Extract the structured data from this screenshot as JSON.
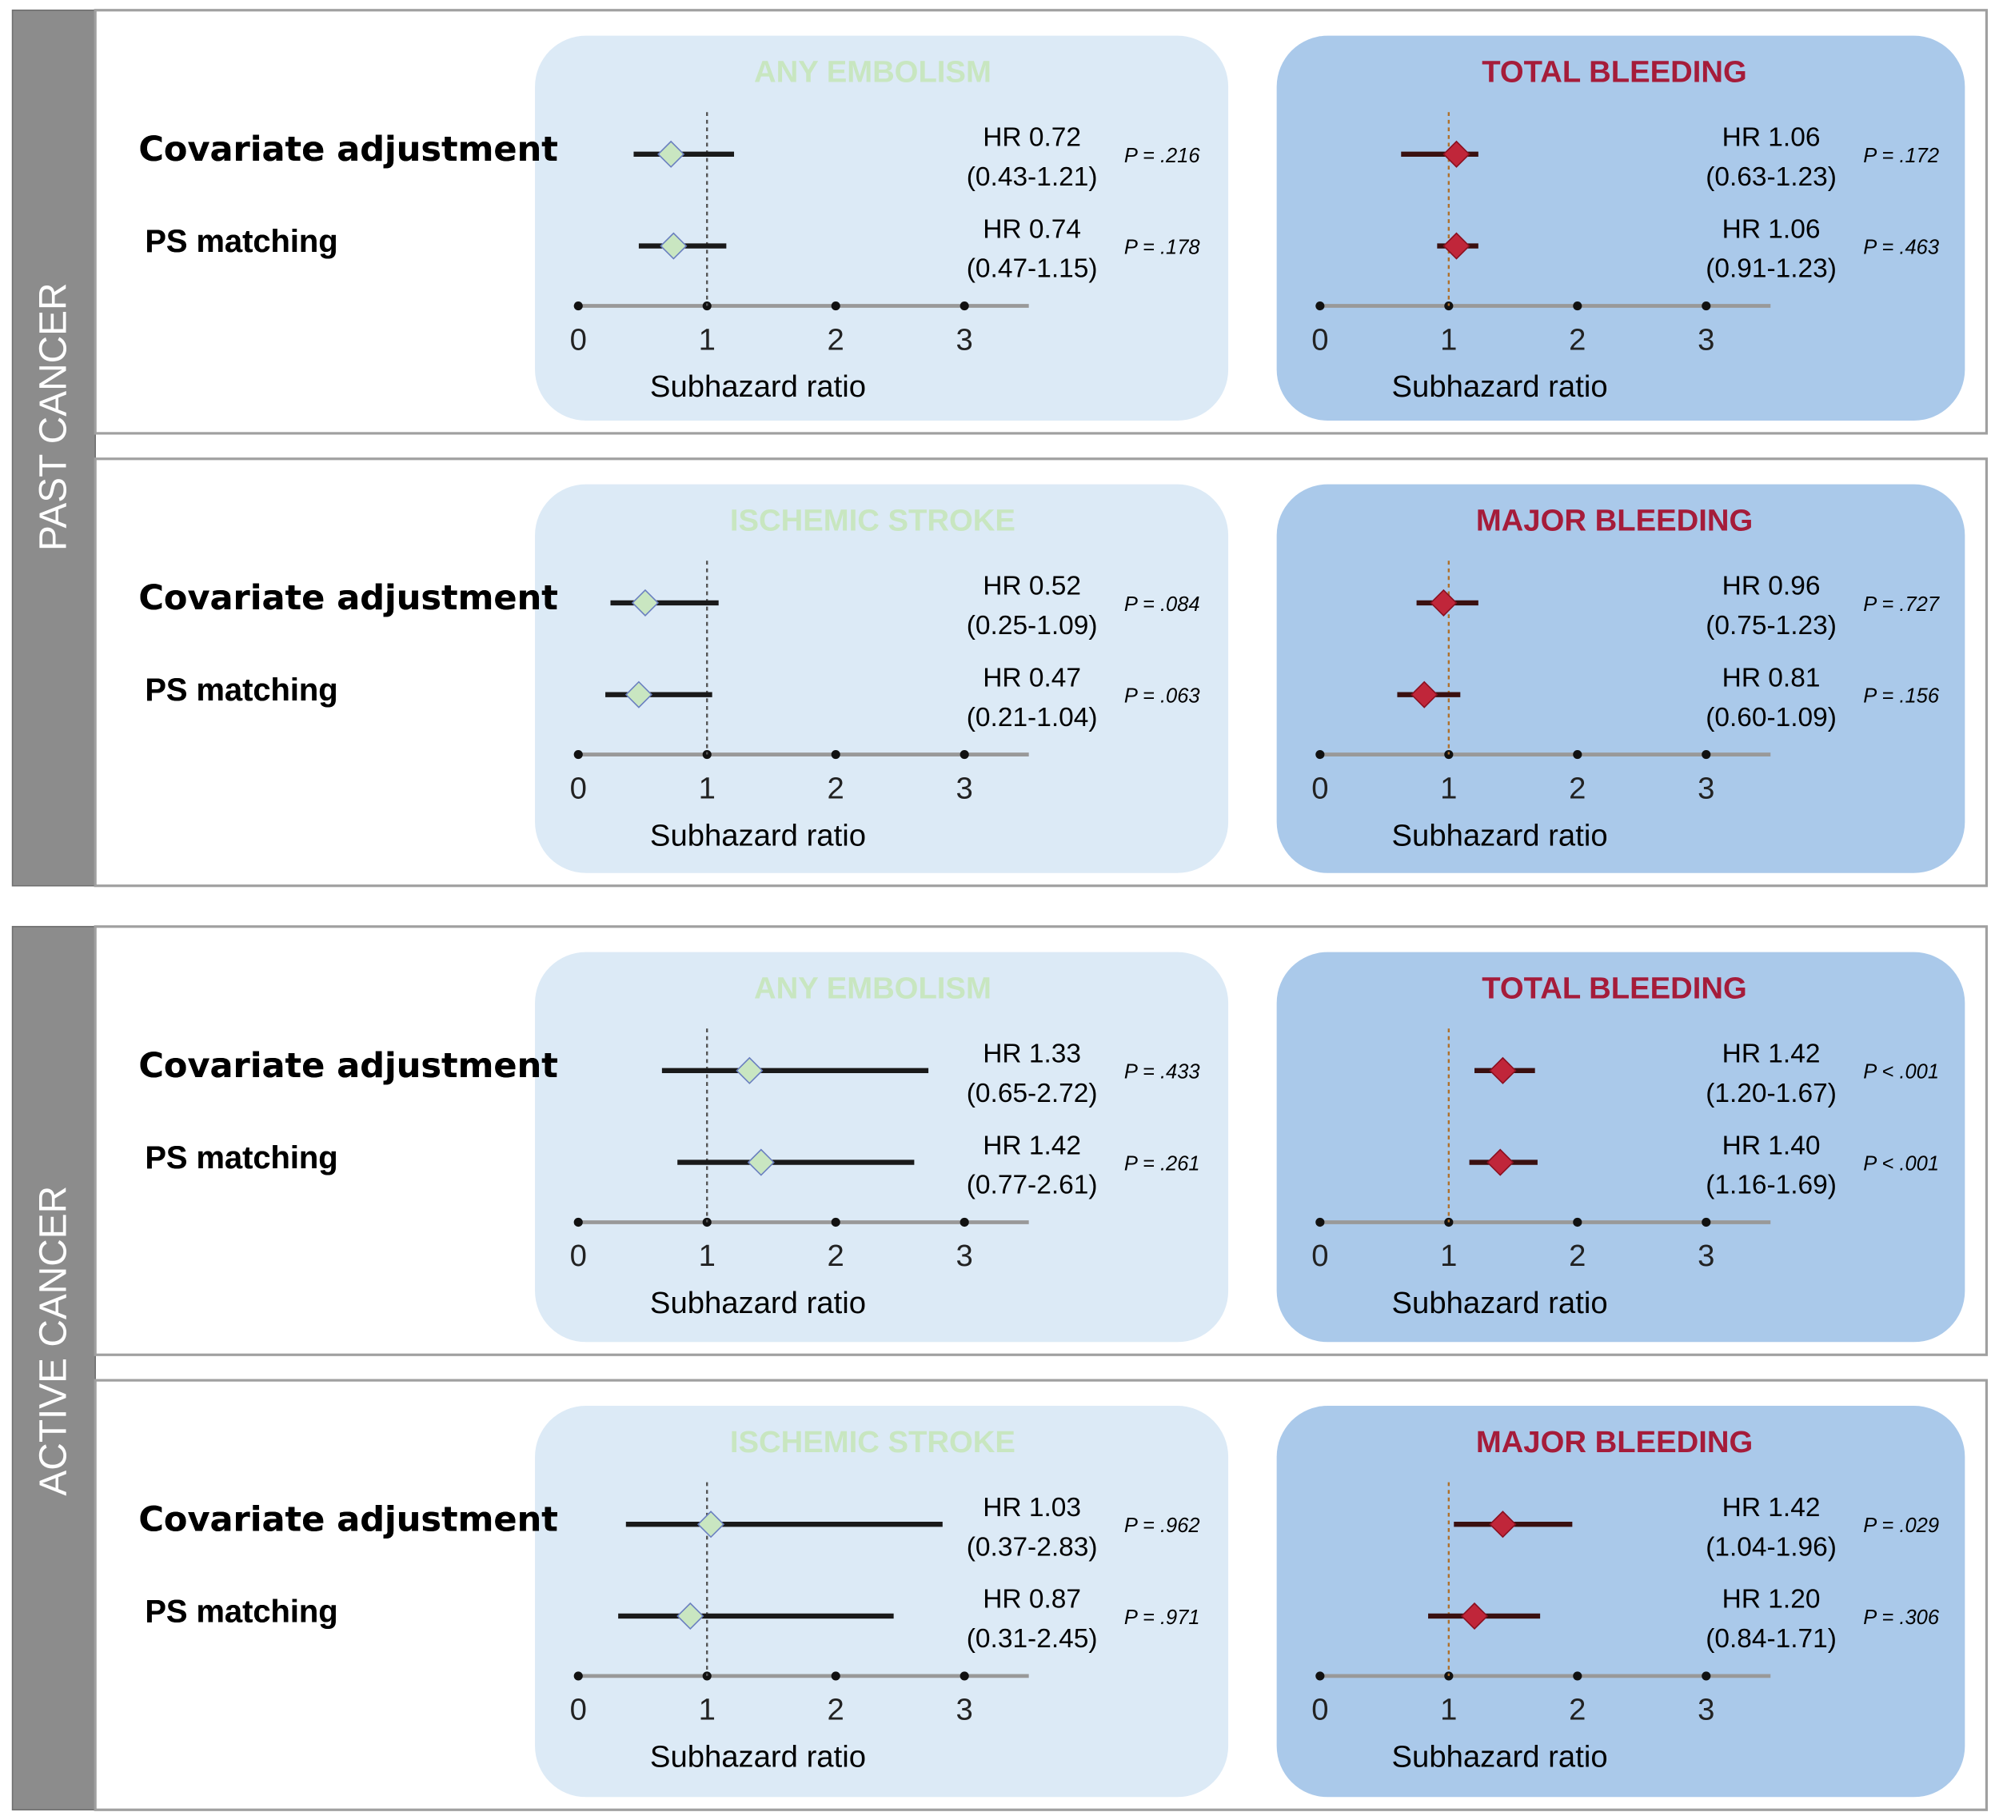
{
  "panel_groups": [
    "PAST CANCER",
    "ACTIVE CANCER"
  ],
  "chart_data": [
    {
      "type": "forest",
      "title": "ANY EMBOLISM",
      "categories": [
        "Covariate adjustment",
        "PS matching"
      ],
      "values": [
        0.72,
        0.74
      ],
      "value_labels": [
        "HR 0.72",
        "HR 0.74"
      ],
      "ci_low": [
        0.43,
        0.47
      ],
      "ci_high": [
        1.21,
        1.15
      ],
      "ci_labels": [
        "(0.43-1.21)",
        "(0.47-1.15)"
      ],
      "p_labels": [
        "P = .216",
        "P = .178"
      ],
      "xlabel": "Subhazard ratio",
      "xlim": [
        0,
        3.5
      ],
      "xticks": [
        0,
        1,
        2,
        3
      ],
      "reference_line": 1,
      "color": "#c9e6c1",
      "panel_color": "#dceaf6",
      "title_color": "#c8e6c0"
    },
    {
      "type": "forest",
      "title": "TOTAL BLEEDING",
      "categories": [
        "Covariate adjustment",
        "PS matching"
      ],
      "values": [
        1.06,
        1.06
      ],
      "value_labels": [
        "HR 1.06",
        "HR 1.06"
      ],
      "ci_low": [
        0.63,
        0.91
      ],
      "ci_high": [
        1.23,
        1.23
      ],
      "ci_labels": [
        "(0.63-1.23)",
        "(0.91-1.23)"
      ],
      "p_labels": [
        "P = .172",
        "P = .463"
      ],
      "xlabel": "Subhazard ratio",
      "xlim": [
        0,
        3.5
      ],
      "xticks": [
        0,
        1,
        2,
        3
      ],
      "reference_line": 1,
      "color": "#c0263a",
      "panel_color": "#aac9ea",
      "title_color": "#a51c3a"
    },
    {
      "type": "forest",
      "title": "ISCHEMIC STROKE",
      "categories": [
        "Covariate adjustment",
        "PS matching"
      ],
      "values": [
        0.52,
        0.47
      ],
      "value_labels": [
        "HR 0.52",
        "HR 0.47"
      ],
      "ci_low": [
        0.25,
        0.21
      ],
      "ci_high": [
        1.09,
        1.04
      ],
      "ci_labels": [
        "(0.25-1.09)",
        "(0.21-1.04)"
      ],
      "p_labels": [
        "P = .084",
        "P = .063"
      ],
      "xlabel": "Subhazard ratio",
      "xlim": [
        0,
        3.5
      ],
      "xticks": [
        0,
        1,
        2,
        3
      ],
      "reference_line": 1,
      "color": "#c9e6c1",
      "panel_color": "#dceaf6",
      "title_color": "#c8e6c0"
    },
    {
      "type": "forest",
      "title": "MAJOR BLEEDING",
      "categories": [
        "Covariate adjustment",
        "PS matching"
      ],
      "values": [
        0.96,
        0.81
      ],
      "value_labels": [
        "HR 0.96",
        "HR 0.81"
      ],
      "ci_low": [
        0.75,
        0.6
      ],
      "ci_high": [
        1.23,
        1.09
      ],
      "ci_labels": [
        "(0.75-1.23)",
        "(0.60-1.09)"
      ],
      "p_labels": [
        "P = .727",
        "P = .156"
      ],
      "xlabel": "Subhazard ratio",
      "xlim": [
        0,
        3.5
      ],
      "xticks": [
        0,
        1,
        2,
        3
      ],
      "reference_line": 1,
      "color": "#c0263a",
      "panel_color": "#aac9ea",
      "title_color": "#a51c3a"
    },
    {
      "type": "forest",
      "title": "ANY EMBOLISM",
      "categories": [
        "Covariate adjustment",
        "PS matching"
      ],
      "values": [
        1.33,
        1.42
      ],
      "value_labels": [
        "HR 1.33",
        "HR 1.42"
      ],
      "ci_low": [
        0.65,
        0.77
      ],
      "ci_high": [
        2.72,
        2.61
      ],
      "ci_labels": [
        "(0.65-2.72)",
        "(0.77-2.61)"
      ],
      "p_labels": [
        "P = .433",
        "P = .261"
      ],
      "xlabel": "Subhazard ratio",
      "xlim": [
        0,
        3.5
      ],
      "xticks": [
        0,
        1,
        2,
        3
      ],
      "reference_line": 1,
      "color": "#c9e6c1",
      "panel_color": "#dceaf6",
      "title_color": "#c8e6c0"
    },
    {
      "type": "forest",
      "title": "TOTAL BLEEDING",
      "categories": [
        "Covariate adjustment",
        "PS matching"
      ],
      "values": [
        1.42,
        1.4
      ],
      "value_labels": [
        "HR 1.42",
        "HR 1.40"
      ],
      "ci_low": [
        1.2,
        1.16
      ],
      "ci_high": [
        1.67,
        1.69
      ],
      "ci_labels": [
        "(1.20-1.67)",
        "(1.16-1.69)"
      ],
      "p_labels": [
        "P < .001",
        "P < .001"
      ],
      "xlabel": "Subhazard ratio",
      "xlim": [
        0,
        3.5
      ],
      "xticks": [
        0,
        1,
        2,
        3
      ],
      "reference_line": 1,
      "color": "#c0263a",
      "panel_color": "#aac9ea",
      "title_color": "#a51c3a"
    },
    {
      "type": "forest",
      "title": "ISCHEMIC STROKE",
      "categories": [
        "Covariate adjustment",
        "PS matching"
      ],
      "values": [
        1.03,
        0.87
      ],
      "value_labels": [
        "HR 1.03",
        "HR 0.87"
      ],
      "ci_low": [
        0.37,
        0.31
      ],
      "ci_high": [
        2.83,
        2.45
      ],
      "ci_labels": [
        "(0.37-2.83)",
        "(0.31-2.45)"
      ],
      "p_labels": [
        "P = .962",
        "P = .971"
      ],
      "xlabel": "Subhazard ratio",
      "xlim": [
        0,
        3.5
      ],
      "xticks": [
        0,
        1,
        2,
        3
      ],
      "reference_line": 1,
      "color": "#c9e6c1",
      "panel_color": "#dceaf6",
      "title_color": "#c8e6c0"
    },
    {
      "type": "forest",
      "title": "MAJOR BLEEDING",
      "categories": [
        "Covariate adjustment",
        "PS matching"
      ],
      "values": [
        1.42,
        1.2
      ],
      "value_labels": [
        "HR 1.42",
        "HR 1.20"
      ],
      "ci_low": [
        1.04,
        0.84
      ],
      "ci_high": [
        1.96,
        1.71
      ],
      "ci_labels": [
        "(1.04-1.96)",
        "(0.84-1.71)"
      ],
      "p_labels": [
        "P = .029",
        "P = .306"
      ],
      "xlabel": "Subhazard ratio",
      "xlim": [
        0,
        3.5
      ],
      "xticks": [
        0,
        1,
        2,
        3
      ],
      "reference_line": 1,
      "color": "#c0263a",
      "panel_color": "#aac9ea",
      "title_color": "#a51c3a"
    }
  ]
}
